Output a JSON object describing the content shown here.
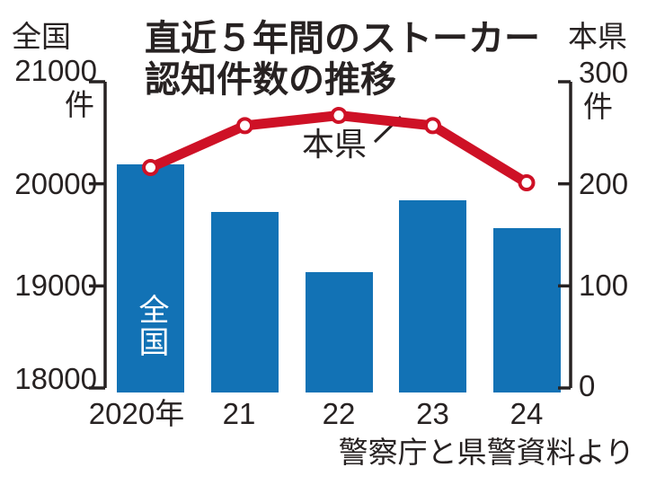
{
  "chart_data": {
    "type": "bar+line",
    "title_lines": [
      "直近５年間のストーカー",
      "認知件数の推移"
    ],
    "categories": [
      "2020年",
      "21",
      "22",
      "23",
      "24"
    ],
    "series": [
      {
        "name": "全国",
        "type": "bar",
        "axis": "left",
        "values": [
          20189,
          19728,
          19131,
          19843,
          19567
        ],
        "label_in_bar": "全国"
      },
      {
        "name": "本県",
        "type": "line",
        "axis": "right",
        "values": [
          216,
          257,
          267,
          257,
          201
        ],
        "annotation": "本県"
      }
    ],
    "axes": {
      "left": {
        "region": "全国",
        "max_label": "21000",
        "unit": "件",
        "ticks": [
          {
            "label": "20000",
            "value": 20000
          },
          {
            "label": "19000",
            "value": 19000
          },
          {
            "label": "18000",
            "value": 18000
          }
        ],
        "range": [
          18000,
          21000
        ]
      },
      "right": {
        "region": "本県",
        "max_label": "300",
        "unit": "件",
        "ticks": [
          {
            "label": "200",
            "value": 200
          },
          {
            "label": "100",
            "value": 100
          },
          {
            "label": "0",
            "value": 0
          }
        ],
        "range": [
          0,
          300
        ]
      }
    },
    "source": "警察庁と県警資料より",
    "grid": false,
    "legend_position": "inline-annotations",
    "colors": {
      "bar": "#1272b5",
      "line": "#ce1126",
      "ink": "#272222",
      "bar_label": "#ffffff",
      "point_fill": "#ffffff"
    }
  }
}
